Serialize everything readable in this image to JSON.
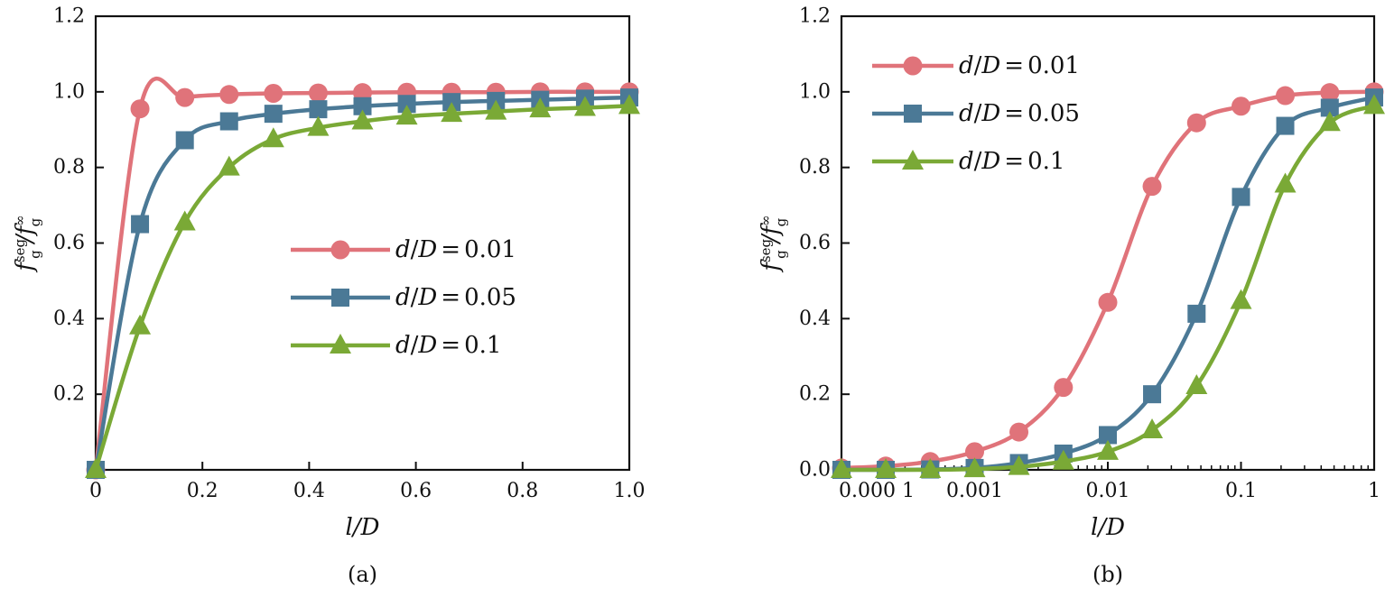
{
  "colors": {
    "d_0.01": "#e0737a",
    "d_0.05": "#4b7996",
    "d_0.1": "#7aa936",
    "axis": "#111111"
  },
  "chart_data": [
    {
      "type": "line",
      "panel_caption": "(a)",
      "xlabel": "l/D",
      "ylabel": "f_g^seg / f_g^∞",
      "x_scale": "linear",
      "xlim": [
        0,
        1.0
      ],
      "ylim": [
        0,
        1.2
      ],
      "x_ticks": [
        "0",
        "0.2",
        "0.4",
        "0.6",
        "0.8",
        "1.0"
      ],
      "y_ticks": [
        "0.2",
        "0.4",
        "0.6",
        "0.8",
        "1.0",
        "1.2"
      ],
      "legend_position": "center-right",
      "grid": false,
      "series": [
        {
          "name": "d/D=0.01",
          "color_key": "d_0.01",
          "marker": "circle",
          "markers": [
            [
              0.0,
              0.0
            ],
            [
              0.083,
              0.955
            ],
            [
              0.167,
              0.985
            ],
            [
              0.25,
              0.993
            ],
            [
              0.333,
              0.996
            ],
            [
              0.417,
              0.997
            ],
            [
              0.5,
              0.998
            ],
            [
              0.583,
              0.999
            ],
            [
              0.667,
              0.999
            ],
            [
              0.75,
              0.999
            ],
            [
              0.833,
              1.0
            ],
            [
              0.917,
              1.0
            ],
            [
              1.0,
              1.0
            ]
          ]
        },
        {
          "name": "d/D=0.05",
          "color_key": "d_0.05",
          "marker": "square",
          "markers": [
            [
              0.0,
              0.0
            ],
            [
              0.083,
              0.65
            ],
            [
              0.167,
              0.872
            ],
            [
              0.25,
              0.922
            ],
            [
              0.333,
              0.942
            ],
            [
              0.417,
              0.954
            ],
            [
              0.5,
              0.962
            ],
            [
              0.583,
              0.968
            ],
            [
              0.667,
              0.973
            ],
            [
              0.75,
              0.976
            ],
            [
              0.833,
              0.979
            ],
            [
              0.917,
              0.982
            ],
            [
              1.0,
              0.985
            ]
          ]
        },
        {
          "name": "d/D=0.1",
          "color_key": "d_0.1",
          "marker": "triangle",
          "markers": [
            [
              0.0,
              0.0
            ],
            [
              0.083,
              0.38
            ],
            [
              0.167,
              0.655
            ],
            [
              0.25,
              0.8
            ],
            [
              0.333,
              0.875
            ],
            [
              0.417,
              0.905
            ],
            [
              0.5,
              0.922
            ],
            [
              0.583,
              0.935
            ],
            [
              0.667,
              0.942
            ],
            [
              0.75,
              0.948
            ],
            [
              0.833,
              0.954
            ],
            [
              0.917,
              0.958
            ],
            [
              1.0,
              0.963
            ]
          ]
        }
      ]
    },
    {
      "type": "line",
      "panel_caption": "(b)",
      "xlabel": "l/D",
      "ylabel": "f_g^seg / f_g^∞",
      "x_scale": "log",
      "xlim": [
        0.0001,
        1
      ],
      "ylim": [
        0,
        1.2
      ],
      "x_ticks": [
        "0.000 1",
        "0.001",
        "0.01",
        "0.1",
        "1"
      ],
      "y_ticks": [
        "0.0",
        "0.2",
        "0.4",
        "0.6",
        "0.8",
        "1.0",
        "1.2"
      ],
      "legend_position": "top-left",
      "grid": false,
      "series": [
        {
          "name": "d/D=0.01",
          "color_key": "d_0.01",
          "marker": "circle",
          "markers": [
            [
              0.0001,
              0.005
            ],
            [
              0.000215,
              0.01
            ],
            [
              0.000464,
              0.022
            ],
            [
              0.001,
              0.048
            ],
            [
              0.00215,
              0.1
            ],
            [
              0.00464,
              0.218
            ],
            [
              0.01,
              0.443
            ],
            [
              0.0215,
              0.75
            ],
            [
              0.0464,
              0.918
            ],
            [
              0.1,
              0.962
            ],
            [
              0.215,
              0.99
            ],
            [
              0.464,
              0.998
            ],
            [
              1.0,
              1.0
            ]
          ]
        },
        {
          "name": "d/D=0.05",
          "color_key": "d_0.05",
          "marker": "square",
          "markers": [
            [
              0.0001,
              0.0
            ],
            [
              0.000215,
              0.0
            ],
            [
              0.000464,
              0.001
            ],
            [
              0.001,
              0.005
            ],
            [
              0.00215,
              0.018
            ],
            [
              0.00464,
              0.043
            ],
            [
              0.01,
              0.092
            ],
            [
              0.0215,
              0.2
            ],
            [
              0.0464,
              0.413
            ],
            [
              0.1,
              0.722
            ],
            [
              0.215,
              0.91
            ],
            [
              0.464,
              0.958
            ],
            [
              1.0,
              0.985
            ]
          ]
        },
        {
          "name": "d/D=0.1",
          "color_key": "d_0.1",
          "marker": "triangle",
          "markers": [
            [
              0.0001,
              0.0
            ],
            [
              0.000215,
              0.0
            ],
            [
              0.000464,
              0.0
            ],
            [
              0.001,
              0.002
            ],
            [
              0.00215,
              0.008
            ],
            [
              0.00464,
              0.022
            ],
            [
              0.01,
              0.048
            ],
            [
              0.0215,
              0.105
            ],
            [
              0.0464,
              0.222
            ],
            [
              0.1,
              0.447
            ],
            [
              0.215,
              0.755
            ],
            [
              0.464,
              0.918
            ],
            [
              1.0,
              0.963
            ]
          ]
        }
      ]
    }
  ]
}
